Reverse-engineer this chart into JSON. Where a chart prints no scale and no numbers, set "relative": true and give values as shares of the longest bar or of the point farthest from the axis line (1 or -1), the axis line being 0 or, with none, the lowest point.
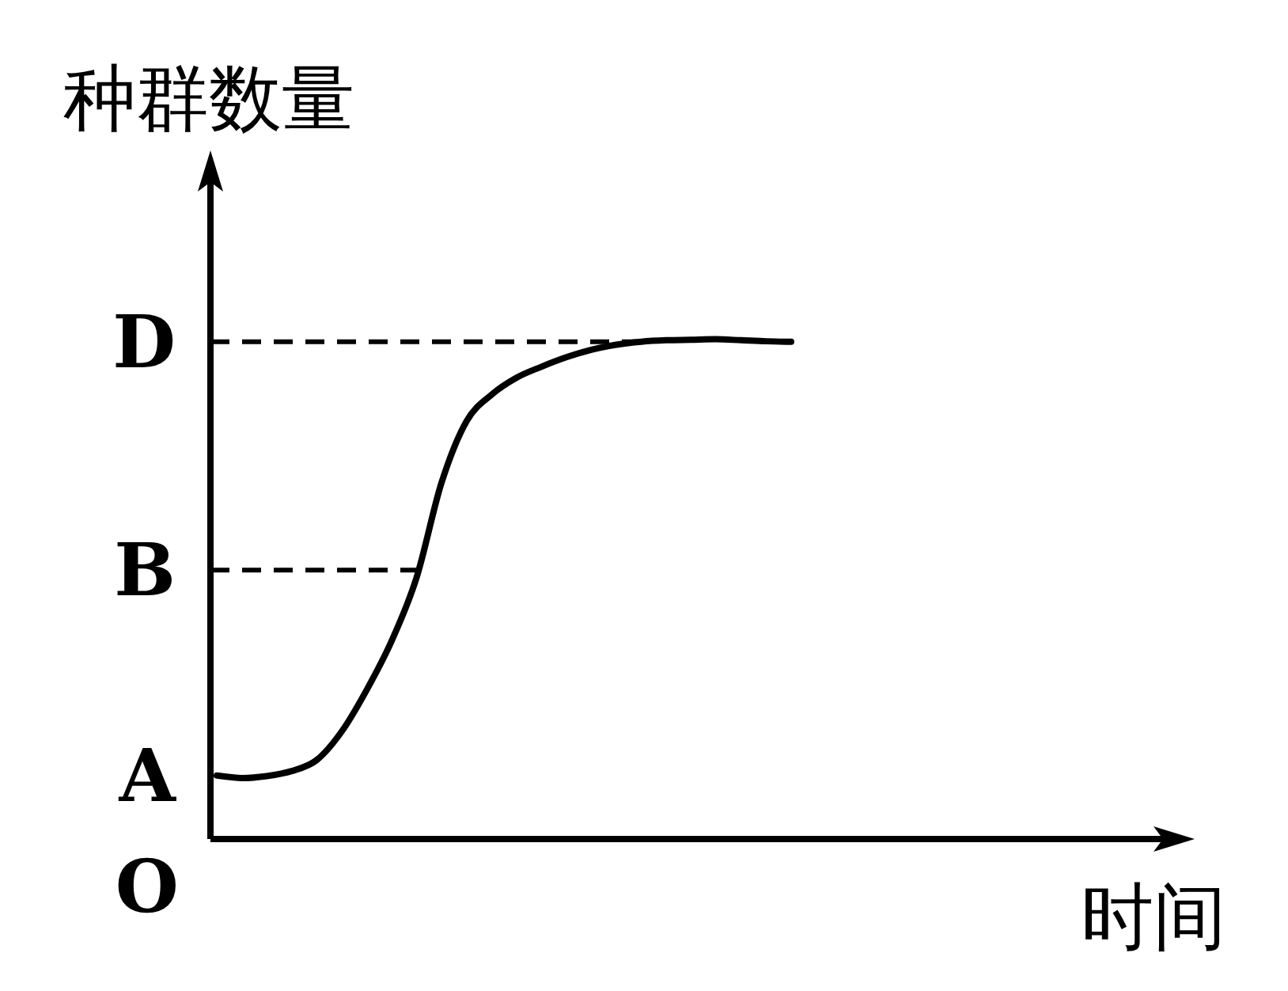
{
  "chart_data": {
    "type": "line",
    "ylabel": "种群数量",
    "xlabel": "时间",
    "relative": true,
    "marker": "none",
    "line_style": "solid",
    "categories": [
      null,
      null,
      null,
      null,
      null,
      null,
      null,
      null,
      null,
      null,
      null,
      null,
      null,
      null,
      null,
      null,
      null,
      null,
      null,
      null,
      null,
      null,
      null,
      null
    ],
    "series": [
      {
        "color": "#000000",
        "values": [
          0.127,
          0.122,
          0.126,
          0.136,
          0.158,
          0.215,
          0.298,
          0.396,
          0.523,
          0.713,
          0.836,
          0.889,
          0.923,
          0.945,
          0.964,
          0.979,
          0.989,
          0.995,
          0.998,
          0.999,
          1,
          0.998,
          0.996,
          0.995
        ]
      }
    ],
    "ref_lines": [
      {
        "axis": "y",
        "value": 0.995,
        "label": "D",
        "line_style": "dashed",
        "color": "#000000"
      },
      {
        "axis": "y",
        "value": 0.538,
        "label": "B",
        "line_style": "dashed",
        "color": "#000000"
      }
    ],
    "annotations": [
      "A",
      "O"
    ]
  }
}
